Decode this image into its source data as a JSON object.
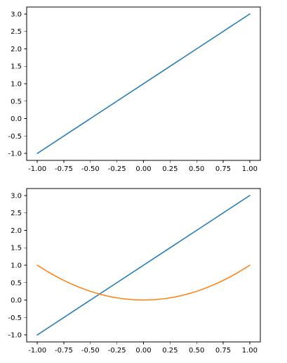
{
  "chart_data": [
    {
      "type": "line",
      "title": "",
      "xlabel": "",
      "ylabel": "",
      "xlim": [
        -1.1,
        1.1
      ],
      "ylim": [
        -1.2,
        3.2
      ],
      "grid": false,
      "xticks": [
        -1.0,
        -0.75,
        -0.5,
        -0.25,
        0.0,
        0.25,
        0.5,
        0.75,
        1.0
      ],
      "xtick_labels": [
        "-1.00",
        "-0.75",
        "-0.50",
        "-0.25",
        "0.00",
        "0.25",
        "0.50",
        "0.75",
        "1.00"
      ],
      "yticks": [
        -1.0,
        -0.5,
        0.0,
        0.5,
        1.0,
        1.5,
        2.0,
        2.5,
        3.0
      ],
      "ytick_labels": [
        "-1.0",
        "-0.5",
        "0.0",
        "0.5",
        "1.0",
        "1.5",
        "2.0",
        "2.5",
        "3.0"
      ],
      "series": [
        {
          "color": "#1f77b4",
          "x": [
            -1.0,
            1.0
          ],
          "y": [
            -1.0,
            3.0
          ]
        }
      ]
    },
    {
      "type": "line",
      "title": "",
      "xlabel": "",
      "ylabel": "",
      "xlim": [
        -1.1,
        1.1
      ],
      "ylim": [
        -1.2,
        3.2
      ],
      "grid": false,
      "xticks": [
        -1.0,
        -0.75,
        -0.5,
        -0.25,
        0.0,
        0.25,
        0.5,
        0.75,
        1.0
      ],
      "xtick_labels": [
        "-1.00",
        "-0.75",
        "-0.50",
        "-0.25",
        "0.00",
        "0.25",
        "0.50",
        "0.75",
        "1.00"
      ],
      "yticks": [
        -1.0,
        -0.5,
        0.0,
        0.5,
        1.0,
        1.5,
        2.0,
        2.5,
        3.0
      ],
      "ytick_labels": [
        "-1.0",
        "-0.5",
        "0.0",
        "0.5",
        "1.0",
        "1.5",
        "2.0",
        "2.5",
        "3.0"
      ],
      "series": [
        {
          "color": "#1f77b4",
          "x": [
            -1.0,
            1.0
          ],
          "y": [
            -1.0,
            3.0
          ]
        },
        {
          "color": "#ff7f0e",
          "x": [
            -1.0,
            -0.9,
            -0.8,
            -0.7,
            -0.6,
            -0.5,
            -0.4,
            -0.3,
            -0.2,
            -0.1,
            0.0,
            0.1,
            0.2,
            0.3,
            0.4,
            0.5,
            0.6,
            0.7,
            0.8,
            0.9,
            1.0
          ],
          "y": [
            1.0,
            0.81,
            0.64,
            0.49,
            0.36,
            0.25,
            0.16,
            0.09,
            0.04,
            0.01,
            0.0,
            0.01,
            0.04,
            0.09,
            0.16,
            0.25,
            0.36,
            0.49,
            0.64,
            0.81,
            1.0
          ]
        }
      ]
    }
  ]
}
